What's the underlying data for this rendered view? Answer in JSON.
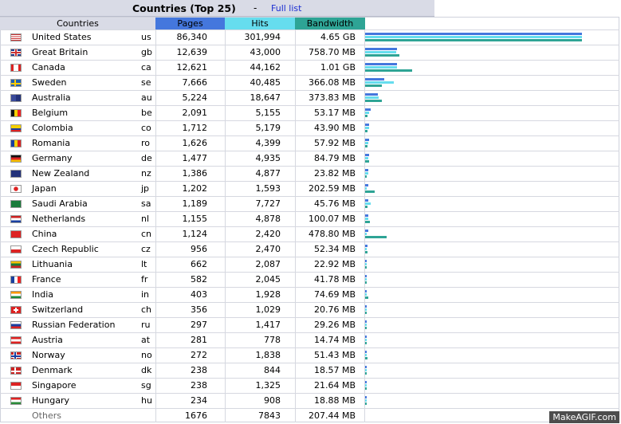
{
  "header": {
    "title": "Countries (Top 25)",
    "separator": "-",
    "full_list_link": "Full list"
  },
  "columns": {
    "countries": "Countries",
    "pages": "Pages",
    "hits": "Hits",
    "bandwidth": "Bandwidth"
  },
  "rows": [
    {
      "name": "United States",
      "code": "us",
      "pages": "86,340",
      "hits": "301,994",
      "bw": "4.65 GB",
      "p": 86340,
      "h": 301994,
      "b": 4761.6
    },
    {
      "name": "Great Britain",
      "code": "gb",
      "pages": "12,639",
      "hits": "43,000",
      "bw": "758.70 MB",
      "p": 12639,
      "h": 43000,
      "b": 758.7
    },
    {
      "name": "Canada",
      "code": "ca",
      "pages": "12,621",
      "hits": "44,162",
      "bw": "1.01 GB",
      "p": 12621,
      "h": 44162,
      "b": 1034.2
    },
    {
      "name": "Sweden",
      "code": "se",
      "pages": "7,666",
      "hits": "40,485",
      "bw": "366.08 MB",
      "p": 7666,
      "h": 40485,
      "b": 366.08
    },
    {
      "name": "Australia",
      "code": "au",
      "pages": "5,224",
      "hits": "18,647",
      "bw": "373.83 MB",
      "p": 5224,
      "h": 18647,
      "b": 373.83
    },
    {
      "name": "Belgium",
      "code": "be",
      "pages": "2,091",
      "hits": "5,155",
      "bw": "53.17 MB",
      "p": 2091,
      "h": 5155,
      "b": 53.17
    },
    {
      "name": "Colombia",
      "code": "co",
      "pages": "1,712",
      "hits": "5,179",
      "bw": "43.90 MB",
      "p": 1712,
      "h": 5179,
      "b": 43.9
    },
    {
      "name": "Romania",
      "code": "ro",
      "pages": "1,626",
      "hits": "4,399",
      "bw": "57.92 MB",
      "p": 1626,
      "h": 4399,
      "b": 57.92
    },
    {
      "name": "Germany",
      "code": "de",
      "pages": "1,477",
      "hits": "4,935",
      "bw": "84.79 MB",
      "p": 1477,
      "h": 4935,
      "b": 84.79
    },
    {
      "name": "New Zealand",
      "code": "nz",
      "pages": "1,386",
      "hits": "4,877",
      "bw": "23.82 MB",
      "p": 1386,
      "h": 4877,
      "b": 23.82
    },
    {
      "name": "Japan",
      "code": "jp",
      "pages": "1,202",
      "hits": "1,593",
      "bw": "202.59 MB",
      "p": 1202,
      "h": 1593,
      "b": 202.59
    },
    {
      "name": "Saudi Arabia",
      "code": "sa",
      "pages": "1,189",
      "hits": "7,727",
      "bw": "45.76 MB",
      "p": 1189,
      "h": 7727,
      "b": 45.76
    },
    {
      "name": "Netherlands",
      "code": "nl",
      "pages": "1,155",
      "hits": "4,878",
      "bw": "100.07 MB",
      "p": 1155,
      "h": 4878,
      "b": 100.07
    },
    {
      "name": "China",
      "code": "cn",
      "pages": "1,124",
      "hits": "2,420",
      "bw": "478.80 MB",
      "p": 1124,
      "h": 2420,
      "b": 478.8
    },
    {
      "name": "Czech Republic",
      "code": "cz",
      "pages": "956",
      "hits": "2,470",
      "bw": "52.34 MB",
      "p": 956,
      "h": 2470,
      "b": 52.34
    },
    {
      "name": "Lithuania",
      "code": "lt",
      "pages": "662",
      "hits": "2,087",
      "bw": "22.92 MB",
      "p": 662,
      "h": 2087,
      "b": 22.92
    },
    {
      "name": "France",
      "code": "fr",
      "pages": "582",
      "hits": "2,045",
      "bw": "41.78 MB",
      "p": 582,
      "h": 2045,
      "b": 41.78
    },
    {
      "name": "India",
      "code": "in",
      "pages": "403",
      "hits": "1,928",
      "bw": "74.69 MB",
      "p": 403,
      "h": 1928,
      "b": 74.69
    },
    {
      "name": "Switzerland",
      "code": "ch",
      "pages": "356",
      "hits": "1,029",
      "bw": "20.76 MB",
      "p": 356,
      "h": 1029,
      "b": 20.76
    },
    {
      "name": "Russian Federation",
      "code": "ru",
      "pages": "297",
      "hits": "1,417",
      "bw": "29.26 MB",
      "p": 297,
      "h": 1417,
      "b": 29.26
    },
    {
      "name": "Austria",
      "code": "at",
      "pages": "281",
      "hits": "778",
      "bw": "14.74 MB",
      "p": 281,
      "h": 778,
      "b": 14.74
    },
    {
      "name": "Norway",
      "code": "no",
      "pages": "272",
      "hits": "1,838",
      "bw": "51.43 MB",
      "p": 272,
      "h": 1838,
      "b": 51.43
    },
    {
      "name": "Denmark",
      "code": "dk",
      "pages": "238",
      "hits": "844",
      "bw": "18.57 MB",
      "p": 238,
      "h": 844,
      "b": 18.57
    },
    {
      "name": "Singapore",
      "code": "sg",
      "pages": "238",
      "hits": "1,325",
      "bw": "21.64 MB",
      "p": 238,
      "h": 1325,
      "b": 21.64
    },
    {
      "name": "Hungary",
      "code": "hu",
      "pages": "234",
      "hits": "908",
      "bw": "18.88 MB",
      "p": 234,
      "h": 908,
      "b": 18.88
    }
  ],
  "others": {
    "label": "Others",
    "pages": "1676",
    "hits": "7843",
    "bw": "207.44 MB"
  },
  "colors": {
    "pages": "#4477dd",
    "hits": "#66ddee",
    "bandwidth": "#2ea495"
  },
  "watermark": "MakeAGIF.com"
}
